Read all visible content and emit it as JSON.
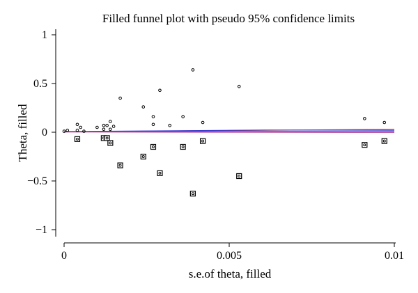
{
  "chart_data": {
    "type": "scatter",
    "title": "Filled funnel plot with pseudo 95% confidence limits",
    "xlabel": "s.e.of theta, filled",
    "ylabel": "Theta, filled",
    "xlim": [
      0,
      0.01
    ],
    "ylim": [
      -1,
      1
    ],
    "xticks": [
      {
        "value": 0,
        "label": "0"
      },
      {
        "value": 0.005,
        "label": "0.005"
      },
      {
        "value": 0.01,
        "label": "0.01"
      }
    ],
    "yticks": [
      {
        "value": 1,
        "label": "1"
      },
      {
        "value": 0.5,
        "label": "0.5"
      },
      {
        "value": 0,
        "label": "0"
      },
      {
        "value": -0.5,
        "label": "−0.5"
      },
      {
        "value": -1,
        "label": "−1"
      }
    ],
    "grid": false,
    "legend": "none",
    "series": [
      {
        "marker": "circle",
        "color": "#000000",
        "points": [
          [
            0.0,
            0.01
          ],
          [
            0.0001,
            0.02
          ],
          [
            0.0004,
            0.02
          ],
          [
            0.0004,
            0.08
          ],
          [
            0.0005,
            0.05
          ],
          [
            0.0006,
            0.01
          ],
          [
            0.001,
            0.05
          ],
          [
            0.0012,
            0.07
          ],
          [
            0.0012,
            0.03
          ],
          [
            0.0013,
            0.07
          ],
          [
            0.0014,
            0.03
          ],
          [
            0.0014,
            0.11
          ],
          [
            0.0015,
            0.06
          ],
          [
            0.0017,
            0.35
          ],
          [
            0.0024,
            0.26
          ],
          [
            0.0027,
            0.08
          ],
          [
            0.0027,
            0.16
          ],
          [
            0.0029,
            0.43
          ],
          [
            0.0032,
            0.07
          ],
          [
            0.0036,
            0.16
          ],
          [
            0.0039,
            0.64
          ],
          [
            0.0042,
            0.1
          ],
          [
            0.0053,
            0.47
          ],
          [
            0.0091,
            0.14
          ],
          [
            0.0097,
            0.1
          ]
        ]
      },
      {
        "marker": "square-with-dot",
        "color": "#000000",
        "points": [
          [
            0.0004,
            -0.07
          ],
          [
            0.0012,
            -0.06
          ],
          [
            0.0013,
            -0.06
          ],
          [
            0.0014,
            -0.11
          ],
          [
            0.0017,
            -0.34
          ],
          [
            0.0024,
            -0.25
          ],
          [
            0.0027,
            -0.15
          ],
          [
            0.0029,
            -0.42
          ],
          [
            0.0036,
            -0.15
          ],
          [
            0.0039,
            -0.63
          ],
          [
            0.0042,
            -0.09
          ],
          [
            0.0053,
            -0.45
          ],
          [
            0.0091,
            -0.13
          ],
          [
            0.0097,
            -0.09
          ]
        ]
      }
    ],
    "lines": [
      {
        "color": "#d43a3a",
        "points": [
          [
            0,
            0.005
          ],
          [
            0.01,
            0.03
          ]
        ]
      },
      {
        "color": "#3a3ad4",
        "points": [
          [
            0,
            0.007
          ],
          [
            0.0063,
            0.023
          ],
          [
            0.01,
            0.02
          ]
        ]
      },
      {
        "color": "#d43a3a",
        "points": [
          [
            0,
            0.004
          ],
          [
            0.01,
            0.01
          ]
        ]
      },
      {
        "color": "#b03a9a",
        "points": [
          [
            0,
            0.003
          ],
          [
            0.01,
            -0.002
          ]
        ]
      }
    ]
  }
}
